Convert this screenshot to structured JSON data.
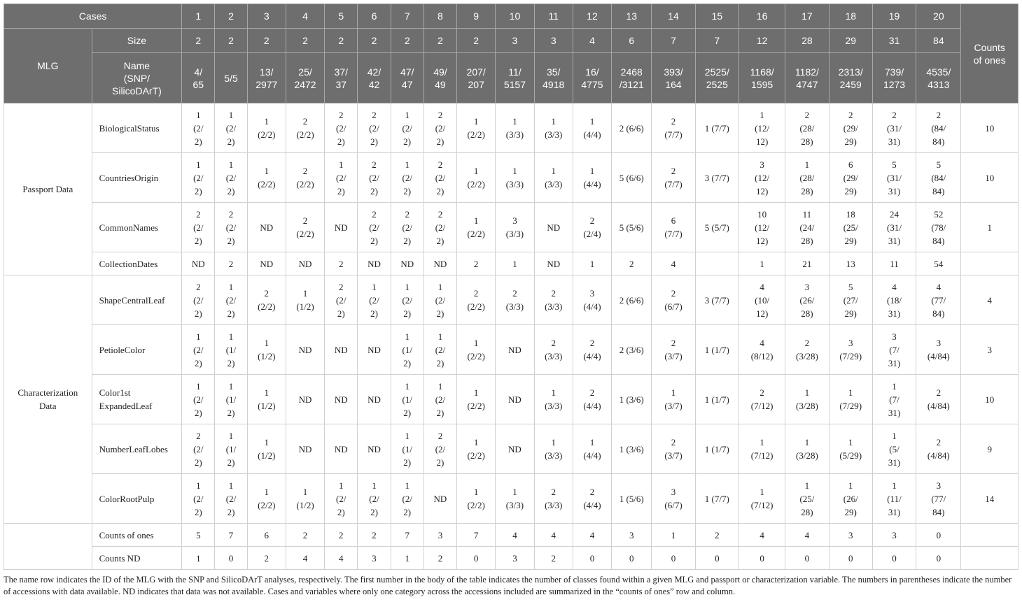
{
  "header": {
    "cases_label": "Cases",
    "mlg_label": "MLG",
    "size_label": "Size",
    "name_label": [
      "Name",
      "(SNP/",
      "SilicoDArT)"
    ],
    "counts_label": [
      "Counts",
      "of ones"
    ],
    "cases": [
      "1",
      "2",
      "3",
      "4",
      "5",
      "6",
      "7",
      "8",
      "9",
      "10",
      "11",
      "12",
      "13",
      "14",
      "15",
      "16",
      "17",
      "18",
      "19",
      "20"
    ],
    "sizes": [
      "2",
      "2",
      "2",
      "2",
      "2",
      "2",
      "2",
      "2",
      "2",
      "3",
      "3",
      "4",
      "6",
      "7",
      "7",
      "12",
      "28",
      "29",
      "31",
      "84"
    ],
    "names": [
      [
        "4/",
        "65"
      ],
      [
        "5/5"
      ],
      [
        "13/",
        "2977"
      ],
      [
        "25/",
        "2472"
      ],
      [
        "37/",
        "37"
      ],
      [
        "42/",
        "42"
      ],
      [
        "47/",
        "47"
      ],
      [
        "49/",
        "49"
      ],
      [
        "207/",
        "207"
      ],
      [
        "11/",
        "5157"
      ],
      [
        "35/",
        "4918"
      ],
      [
        "16/",
        "4775"
      ],
      [
        "2468",
        "/3121"
      ],
      [
        "393/",
        "164"
      ],
      [
        "2525/",
        "2525"
      ],
      [
        "1168/",
        "1595"
      ],
      [
        "1182/",
        "4747"
      ],
      [
        "2313/",
        "2459"
      ],
      [
        "739/",
        "1273"
      ],
      [
        "4535/",
        "4313"
      ]
    ]
  },
  "groups": [
    {
      "label": [
        "Passport Data"
      ],
      "rows": [
        {
          "name": [
            "BiologicalStatus"
          ],
          "cells": [
            [
              "1",
              "(2/",
              "2)"
            ],
            [
              "1",
              "(2/",
              "2)"
            ],
            [
              "1",
              "(2/2)"
            ],
            [
              "2",
              "(2/2)"
            ],
            [
              "2",
              "(2/",
              "2)"
            ],
            [
              "2",
              "(2/",
              "2)"
            ],
            [
              "1",
              "(2/",
              "2)"
            ],
            [
              "2",
              "(2/",
              "2)"
            ],
            [
              "1",
              "(2/2)"
            ],
            [
              "1",
              "(3/3)"
            ],
            [
              "1",
              "(3/3)"
            ],
            [
              "1",
              "(4/4)"
            ],
            [
              "2 (6/6)"
            ],
            [
              "2",
              "(7/7)"
            ],
            [
              "1 (7/7)"
            ],
            [
              "1",
              "(12/",
              "12)"
            ],
            [
              "2",
              "(28/",
              "28)"
            ],
            [
              "2",
              "(29/",
              "29)"
            ],
            [
              "2",
              "(31/",
              "31)"
            ],
            [
              "2",
              "(84/",
              "84)"
            ]
          ],
          "count": "10"
        },
        {
          "name": [
            "CountriesOrigin"
          ],
          "cells": [
            [
              "1",
              "(2/",
              "2)"
            ],
            [
              "1",
              "(2/",
              "2)"
            ],
            [
              "1",
              "(2/2)"
            ],
            [
              "2",
              "(2/2)"
            ],
            [
              "1",
              "(2/",
              "2)"
            ],
            [
              "2",
              "(2/",
              "2)"
            ],
            [
              "1",
              "(2/",
              "2)"
            ],
            [
              "2",
              "(2/",
              "2)"
            ],
            [
              "1",
              "(2/2)"
            ],
            [
              "1",
              "(3/3)"
            ],
            [
              "1",
              "(3/3)"
            ],
            [
              "1",
              "(4/4)"
            ],
            [
              "5 (6/6)"
            ],
            [
              "2",
              "(7/7)"
            ],
            [
              "3 (7/7)"
            ],
            [
              "3",
              "(12/",
              "12)"
            ],
            [
              "1",
              "(28/",
              "28)"
            ],
            [
              "6",
              "(29/",
              "29)"
            ],
            [
              "5",
              "(31/",
              "31)"
            ],
            [
              "5",
              "(84/",
              "84)"
            ]
          ],
          "count": "10"
        },
        {
          "name": [
            "CommonNames"
          ],
          "cells": [
            [
              "2",
              "(2/",
              "2)"
            ],
            [
              "2",
              "(2/",
              "2)"
            ],
            [
              "ND"
            ],
            [
              "2",
              "(2/2)"
            ],
            [
              "ND"
            ],
            [
              "2",
              "(2/",
              "2)"
            ],
            [
              "2",
              "(2/",
              "2)"
            ],
            [
              "2",
              "(2/",
              "2)"
            ],
            [
              "1",
              "(2/2)"
            ],
            [
              "3",
              "(3/3)"
            ],
            [
              "ND"
            ],
            [
              "2",
              "(2/4)"
            ],
            [
              "5 (5/6)"
            ],
            [
              "6",
              "(7/7)"
            ],
            [
              "5 (5/7)"
            ],
            [
              "10",
              "(12/",
              "12)"
            ],
            [
              "11",
              "(24/",
              "28)"
            ],
            [
              "18",
              "(25/",
              "29)"
            ],
            [
              "24",
              "(31/",
              "31)"
            ],
            [
              "52",
              "(78/",
              "84)"
            ]
          ],
          "count": "1"
        },
        {
          "name": [
            "CollectionDates"
          ],
          "cells": [
            [
              "ND"
            ],
            [
              "2"
            ],
            [
              "ND"
            ],
            [
              "ND"
            ],
            [
              "2"
            ],
            [
              "ND"
            ],
            [
              "ND"
            ],
            [
              "ND"
            ],
            [
              "2"
            ],
            [
              "1"
            ],
            [
              "ND"
            ],
            [
              "1"
            ],
            [
              "2"
            ],
            [
              "4"
            ],
            [
              ""
            ],
            [
              "1"
            ],
            [
              "21"
            ],
            [
              "13"
            ],
            [
              "11"
            ],
            [
              "54"
            ]
          ],
          "count": ""
        }
      ]
    },
    {
      "label": [
        "Characterization",
        "Data"
      ],
      "rows": [
        {
          "name": [
            "ShapeCentralLeaf"
          ],
          "cells": [
            [
              "2",
              "(2/",
              "2)"
            ],
            [
              "1",
              "(2/",
              "2)"
            ],
            [
              "2",
              "(2/2)"
            ],
            [
              "1",
              "(1/2)"
            ],
            [
              "2",
              "(2/",
              "2)"
            ],
            [
              "1",
              "(2/",
              "2)"
            ],
            [
              "1",
              "(2/",
              "2)"
            ],
            [
              "1",
              "(2/",
              "2)"
            ],
            [
              "2",
              "(2/2)"
            ],
            [
              "2",
              "(3/3)"
            ],
            [
              "2",
              "(3/3)"
            ],
            [
              "3",
              "(4/4)"
            ],
            [
              "2 (6/6)"
            ],
            [
              "2",
              "(6/7)"
            ],
            [
              "3 (7/7)"
            ],
            [
              "4",
              "(10/",
              "12)"
            ],
            [
              "3",
              "(26/",
              "28)"
            ],
            [
              "5",
              "(27/",
              "29)"
            ],
            [
              "4",
              "(18/",
              "31)"
            ],
            [
              "4",
              "(77/",
              "84)"
            ]
          ],
          "count": "4"
        },
        {
          "name": [
            "PetioleColor"
          ],
          "cells": [
            [
              "1",
              "(2/",
              "2)"
            ],
            [
              "1",
              "(1/",
              "2)"
            ],
            [
              "1",
              "(1/2)"
            ],
            [
              "ND"
            ],
            [
              "ND"
            ],
            [
              "ND"
            ],
            [
              "1",
              "(1/",
              "2)"
            ],
            [
              "1",
              "(2/",
              "2)"
            ],
            [
              "1",
              "(2/2)"
            ],
            [
              "ND"
            ],
            [
              "2",
              "(3/3)"
            ],
            [
              "2",
              "(4/4)"
            ],
            [
              "2 (3/6)"
            ],
            [
              "2",
              "(3/7)"
            ],
            [
              "1 (1/7)"
            ],
            [
              "4",
              "(8/12)"
            ],
            [
              "2",
              "(3/28)"
            ],
            [
              "3",
              "(7/29)"
            ],
            [
              "3",
              "(7/",
              "31)"
            ],
            [
              "3",
              "(4/84)"
            ]
          ],
          "count": "3"
        },
        {
          "name": [
            "Color1st",
            "ExpandedLeaf"
          ],
          "cells": [
            [
              "1",
              "(2/",
              "2)"
            ],
            [
              "1",
              "(1/",
              "2)"
            ],
            [
              "1",
              "(1/2)"
            ],
            [
              "ND"
            ],
            [
              "ND"
            ],
            [
              "ND"
            ],
            [
              "1",
              "(1/",
              "2)"
            ],
            [
              "1",
              "(2/",
              "2)"
            ],
            [
              "1",
              "(2/2)"
            ],
            [
              "ND"
            ],
            [
              "1",
              "(3/3)"
            ],
            [
              "2",
              "(4/4)"
            ],
            [
              "1 (3/6)"
            ],
            [
              "1",
              "(3/7)"
            ],
            [
              "1 (1/7)"
            ],
            [
              "2",
              "(7/12)"
            ],
            [
              "1",
              "(3/28)"
            ],
            [
              "1",
              "(7/29)"
            ],
            [
              "1",
              "(7/",
              "31)"
            ],
            [
              "2",
              "(4/84)"
            ]
          ],
          "count": "10"
        },
        {
          "name": [
            "NumberLeafLobes"
          ],
          "cells": [
            [
              "2",
              "(2/",
              "2)"
            ],
            [
              "1",
              "(1/",
              "2)"
            ],
            [
              "1",
              "(1/2)"
            ],
            [
              "ND"
            ],
            [
              "ND"
            ],
            [
              "ND"
            ],
            [
              "1",
              "(1/",
              "2)"
            ],
            [
              "2",
              "(2/",
              "2)"
            ],
            [
              "1",
              "(2/2)"
            ],
            [
              "ND"
            ],
            [
              "1",
              "(3/3)"
            ],
            [
              "1",
              "(4/4)"
            ],
            [
              "1 (3/6)"
            ],
            [
              "2",
              "(3/7)"
            ],
            [
              "1 (1/7)"
            ],
            [
              "1",
              "(7/12)"
            ],
            [
              "1",
              "(3/28)"
            ],
            [
              "1",
              "(5/29)"
            ],
            [
              "1",
              "(5/",
              "31)"
            ],
            [
              "2",
              "(4/84)"
            ]
          ],
          "count": "9"
        },
        {
          "name": [
            "ColorRootPulp"
          ],
          "cells": [
            [
              "1",
              "(2/",
              "2)"
            ],
            [
              "1",
              "(2/",
              "2)"
            ],
            [
              "1",
              "(2/2)"
            ],
            [
              "1",
              "(1/2)"
            ],
            [
              "1",
              "(2/",
              "2)"
            ],
            [
              "1",
              "(2/",
              "2)"
            ],
            [
              "1",
              "(2/",
              "2)"
            ],
            [
              "ND"
            ],
            [
              "1",
              "(2/2)"
            ],
            [
              "1",
              "(3/3)"
            ],
            [
              "2",
              "(3/3)"
            ],
            [
              "2",
              "(4/4)"
            ],
            [
              "1 (5/6)"
            ],
            [
              "3",
              "(6/7)"
            ],
            [
              "1 (7/7)"
            ],
            [
              "1",
              "(7/12)"
            ],
            [
              "1",
              "(25/",
              "28)"
            ],
            [
              "1",
              "(26/",
              "29)"
            ],
            [
              "1",
              "(11/",
              "31)"
            ],
            [
              "3",
              "(77/",
              "84)"
            ]
          ],
          "count": "14"
        }
      ]
    },
    {
      "label": [
        ""
      ],
      "rows": [
        {
          "name": [
            "Counts of ones"
          ],
          "cells": [
            [
              "5"
            ],
            [
              "7"
            ],
            [
              "6"
            ],
            [
              "2"
            ],
            [
              "2"
            ],
            [
              "2"
            ],
            [
              "7"
            ],
            [
              "3"
            ],
            [
              "7"
            ],
            [
              "4"
            ],
            [
              "4"
            ],
            [
              "4"
            ],
            [
              "3"
            ],
            [
              "1"
            ],
            [
              "2"
            ],
            [
              "4"
            ],
            [
              "4"
            ],
            [
              "3"
            ],
            [
              "3"
            ],
            [
              "0"
            ]
          ],
          "count": ""
        },
        {
          "name": [
            "Counts ND"
          ],
          "cells": [
            [
              "1"
            ],
            [
              "0"
            ],
            [
              "2"
            ],
            [
              "4"
            ],
            [
              "4"
            ],
            [
              "3"
            ],
            [
              "1"
            ],
            [
              "2"
            ],
            [
              "0"
            ],
            [
              "3"
            ],
            [
              "2"
            ],
            [
              "0"
            ],
            [
              "0"
            ],
            [
              "0"
            ],
            [
              "0"
            ],
            [
              "0"
            ],
            [
              "0"
            ],
            [
              "0"
            ],
            [
              "0"
            ],
            [
              "0"
            ]
          ],
          "count": ""
        }
      ]
    }
  ],
  "footnote": "The name row indicates the ID of the MLG with the SNP and SilicoDArT analyses, respectively. The first number in the body of the table indicates the number of classes found within a given MLG and passport or characterization variable. The numbers in parentheses indicate the number of accessions with data available. ND indicates that data was not available. Cases and variables where only one category across the accessions included are summarized in the “counts of ones” row and column."
}
